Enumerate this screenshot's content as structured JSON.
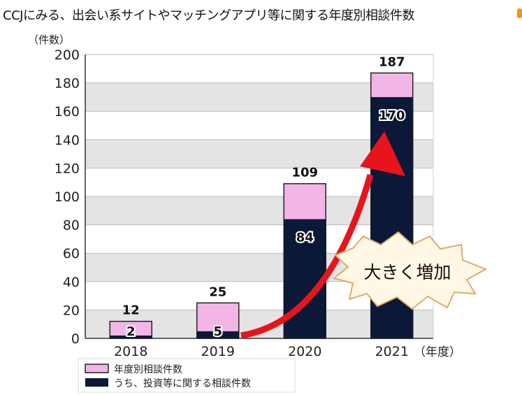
{
  "title": "CCJにみる、出会い系サイトやマッチングアプリ等に関する年度別相談件数",
  "chart_data": {
    "type": "bar",
    "stacked": "overlay",
    "title": "CCJにみる、出会い系サイトやマッチングアプリ等に関する年度別相談件数",
    "ylabel": "（件数）",
    "xlabel": "（年度）",
    "ylim": [
      0,
      200
    ],
    "yticks": [
      0,
      20,
      40,
      60,
      80,
      100,
      120,
      140,
      160,
      180,
      200
    ],
    "categories": [
      "2018",
      "2019",
      "2020",
      "2021"
    ],
    "series": [
      {
        "name": "年度別相談件数",
        "color": "#f2b6e6",
        "values": [
          12,
          25,
          109,
          187
        ]
      },
      {
        "name": "うち、投資等に関する相談件数",
        "color": "#0b1838",
        "values": [
          2,
          5,
          84,
          170
        ]
      }
    ],
    "legend": "bottom-left",
    "annotation": "大きく増加",
    "arrow_color": "#e8141b"
  }
}
